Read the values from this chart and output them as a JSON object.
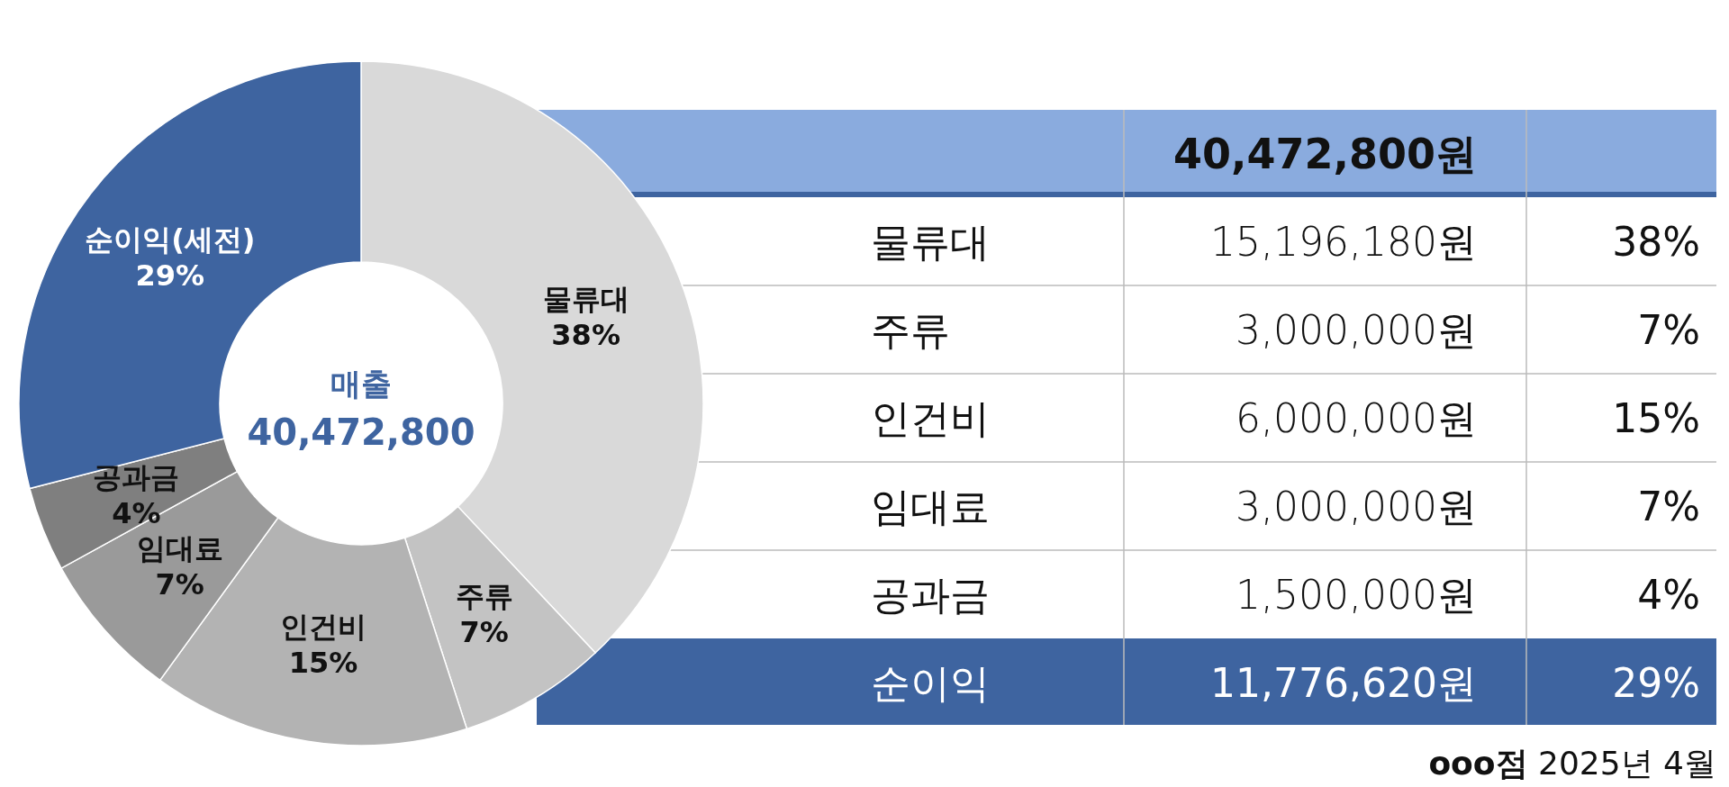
{
  "chart_data": [
    {
      "type": "donut",
      "categories": [
        "물류대",
        "주류",
        "인건비",
        "임대료",
        "공과금",
        "순이익(세전)"
      ],
      "values": [
        38,
        7,
        15,
        7,
        4,
        29
      ],
      "colors": [
        "#d9d9d9",
        "#c3c3c3",
        "#b3b3b3",
        "#9a9a9a",
        "#7f7f7f",
        "#3e64a0"
      ],
      "value_labels": [
        "38%",
        "7%",
        "15%",
        "7%",
        "4%",
        "29%"
      ],
      "annotations": [
        "매출",
        "40,472,800"
      ]
    },
    {
      "type": "other",
      "title": "ooo점 2025년 4월",
      "annotations": [
        "40,472,800원",
        "물류대",
        "15,196,180원",
        "38%",
        "주류",
        "3,000,000원",
        "7%",
        "인건비",
        "6,000,000원",
        "15%",
        "임대료",
        "3,000,000원",
        "7%",
        "공과금",
        "1,500,000원",
        "4%",
        "순이익",
        "11,776,620원",
        "29%"
      ]
    }
  ]
}
